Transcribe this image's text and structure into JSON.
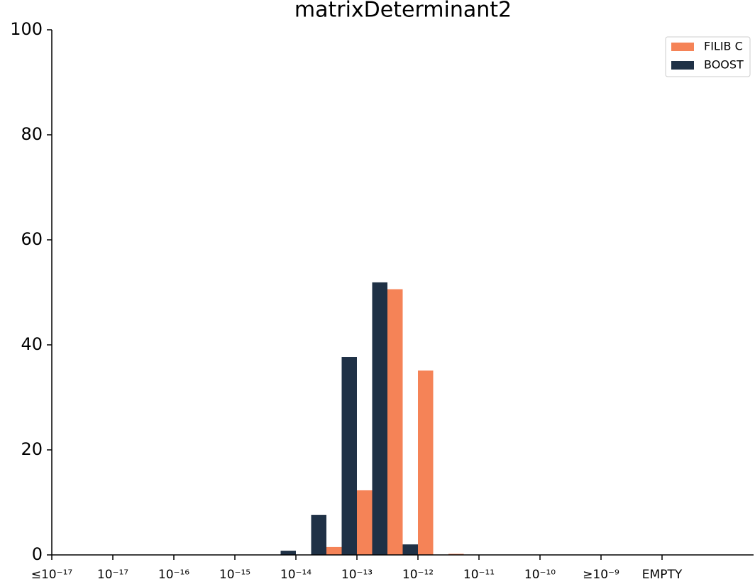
{
  "chart_data": {
    "type": "bar",
    "title": "matrixDeterminant2",
    "categories": [
      "≤10⁻¹⁷",
      null,
      "10⁻¹⁷",
      null,
      "10⁻¹⁶",
      null,
      "10⁻¹⁵",
      null,
      "10⁻¹⁴",
      null,
      "10⁻¹³",
      null,
      "10⁻¹²",
      null,
      "10⁻¹¹",
      null,
      "10⁻¹⁰",
      null,
      "≥10⁻⁹",
      null,
      "EMPTY",
      null,
      null
    ],
    "series": [
      {
        "name": "FILIB C",
        "color": "#f58357",
        "values": [
          0,
          0,
          0,
          0,
          0,
          0,
          0,
          0,
          0,
          1.5,
          12.3,
          50.6,
          35.1,
          0.2,
          0,
          0,
          0,
          0,
          0,
          0,
          0,
          0,
          0
        ]
      },
      {
        "name": "BOOST",
        "color": "#1f3146",
        "values": [
          0,
          0,
          0,
          0,
          0,
          0,
          0,
          0,
          0.8,
          7.6,
          37.7,
          51.9,
          2.0,
          0,
          0,
          0,
          0,
          0,
          0,
          0,
          0,
          0,
          0
        ]
      }
    ],
    "ylim": [
      0,
      100
    ],
    "yticks": [
      0,
      20,
      40,
      60,
      80,
      100
    ],
    "legend": "upper right"
  }
}
